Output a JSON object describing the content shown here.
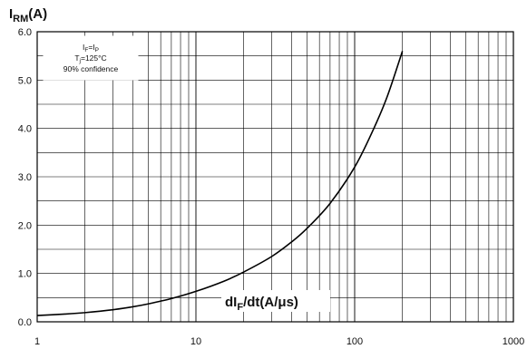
{
  "chart_data": {
    "type": "line",
    "x_scale": "log",
    "xlim": [
      1,
      1000
    ],
    "ylim": [
      0,
      6
    ],
    "grid": true,
    "y_axis_title": {
      "main": "I",
      "sub": "RM",
      "rest": "(A)"
    },
    "x_axis_title": {
      "main": "dI",
      "sub": "F",
      "rest": "/dt(A/μs)"
    },
    "x_ticks": [
      {
        "value": 1,
        "label": "1"
      },
      {
        "value": 10,
        "label": "10"
      },
      {
        "value": 100,
        "label": "100"
      },
      {
        "value": 1000,
        "label": "1000"
      }
    ],
    "y_ticks": [
      {
        "value": 0,
        "label": "0.0"
      },
      {
        "value": 1,
        "label": "1.0"
      },
      {
        "value": 2,
        "label": "2.0"
      },
      {
        "value": 3,
        "label": "3.0"
      },
      {
        "value": 4,
        "label": "4.0"
      },
      {
        "value": 5,
        "label": "5.0"
      },
      {
        "value": 6,
        "label": "6.0"
      }
    ],
    "legend": {
      "placement": "top-left",
      "lines": [
        [
          {
            "t": "I"
          },
          {
            "t": "F",
            "sub": true
          },
          {
            "t": "=I"
          },
          {
            "t": "P",
            "sub": true
          }
        ],
        [
          {
            "t": "T"
          },
          {
            "t": "j",
            "sub": true
          },
          {
            "t": "=125°C"
          }
        ],
        [
          {
            "t": "90% confidence"
          }
        ]
      ]
    },
    "series": [
      {
        "color": "#000000",
        "x": [
          1,
          1.5,
          2,
          3,
          4,
          5,
          7,
          10,
          15,
          20,
          30,
          40,
          50,
          70,
          100,
          130,
          160,
          200
        ],
        "y": [
          0.13,
          0.16,
          0.19,
          0.25,
          0.31,
          0.37,
          0.48,
          0.63,
          0.84,
          1.03,
          1.35,
          1.65,
          1.93,
          2.45,
          3.2,
          3.95,
          4.65,
          5.6
        ]
      }
    ]
  }
}
